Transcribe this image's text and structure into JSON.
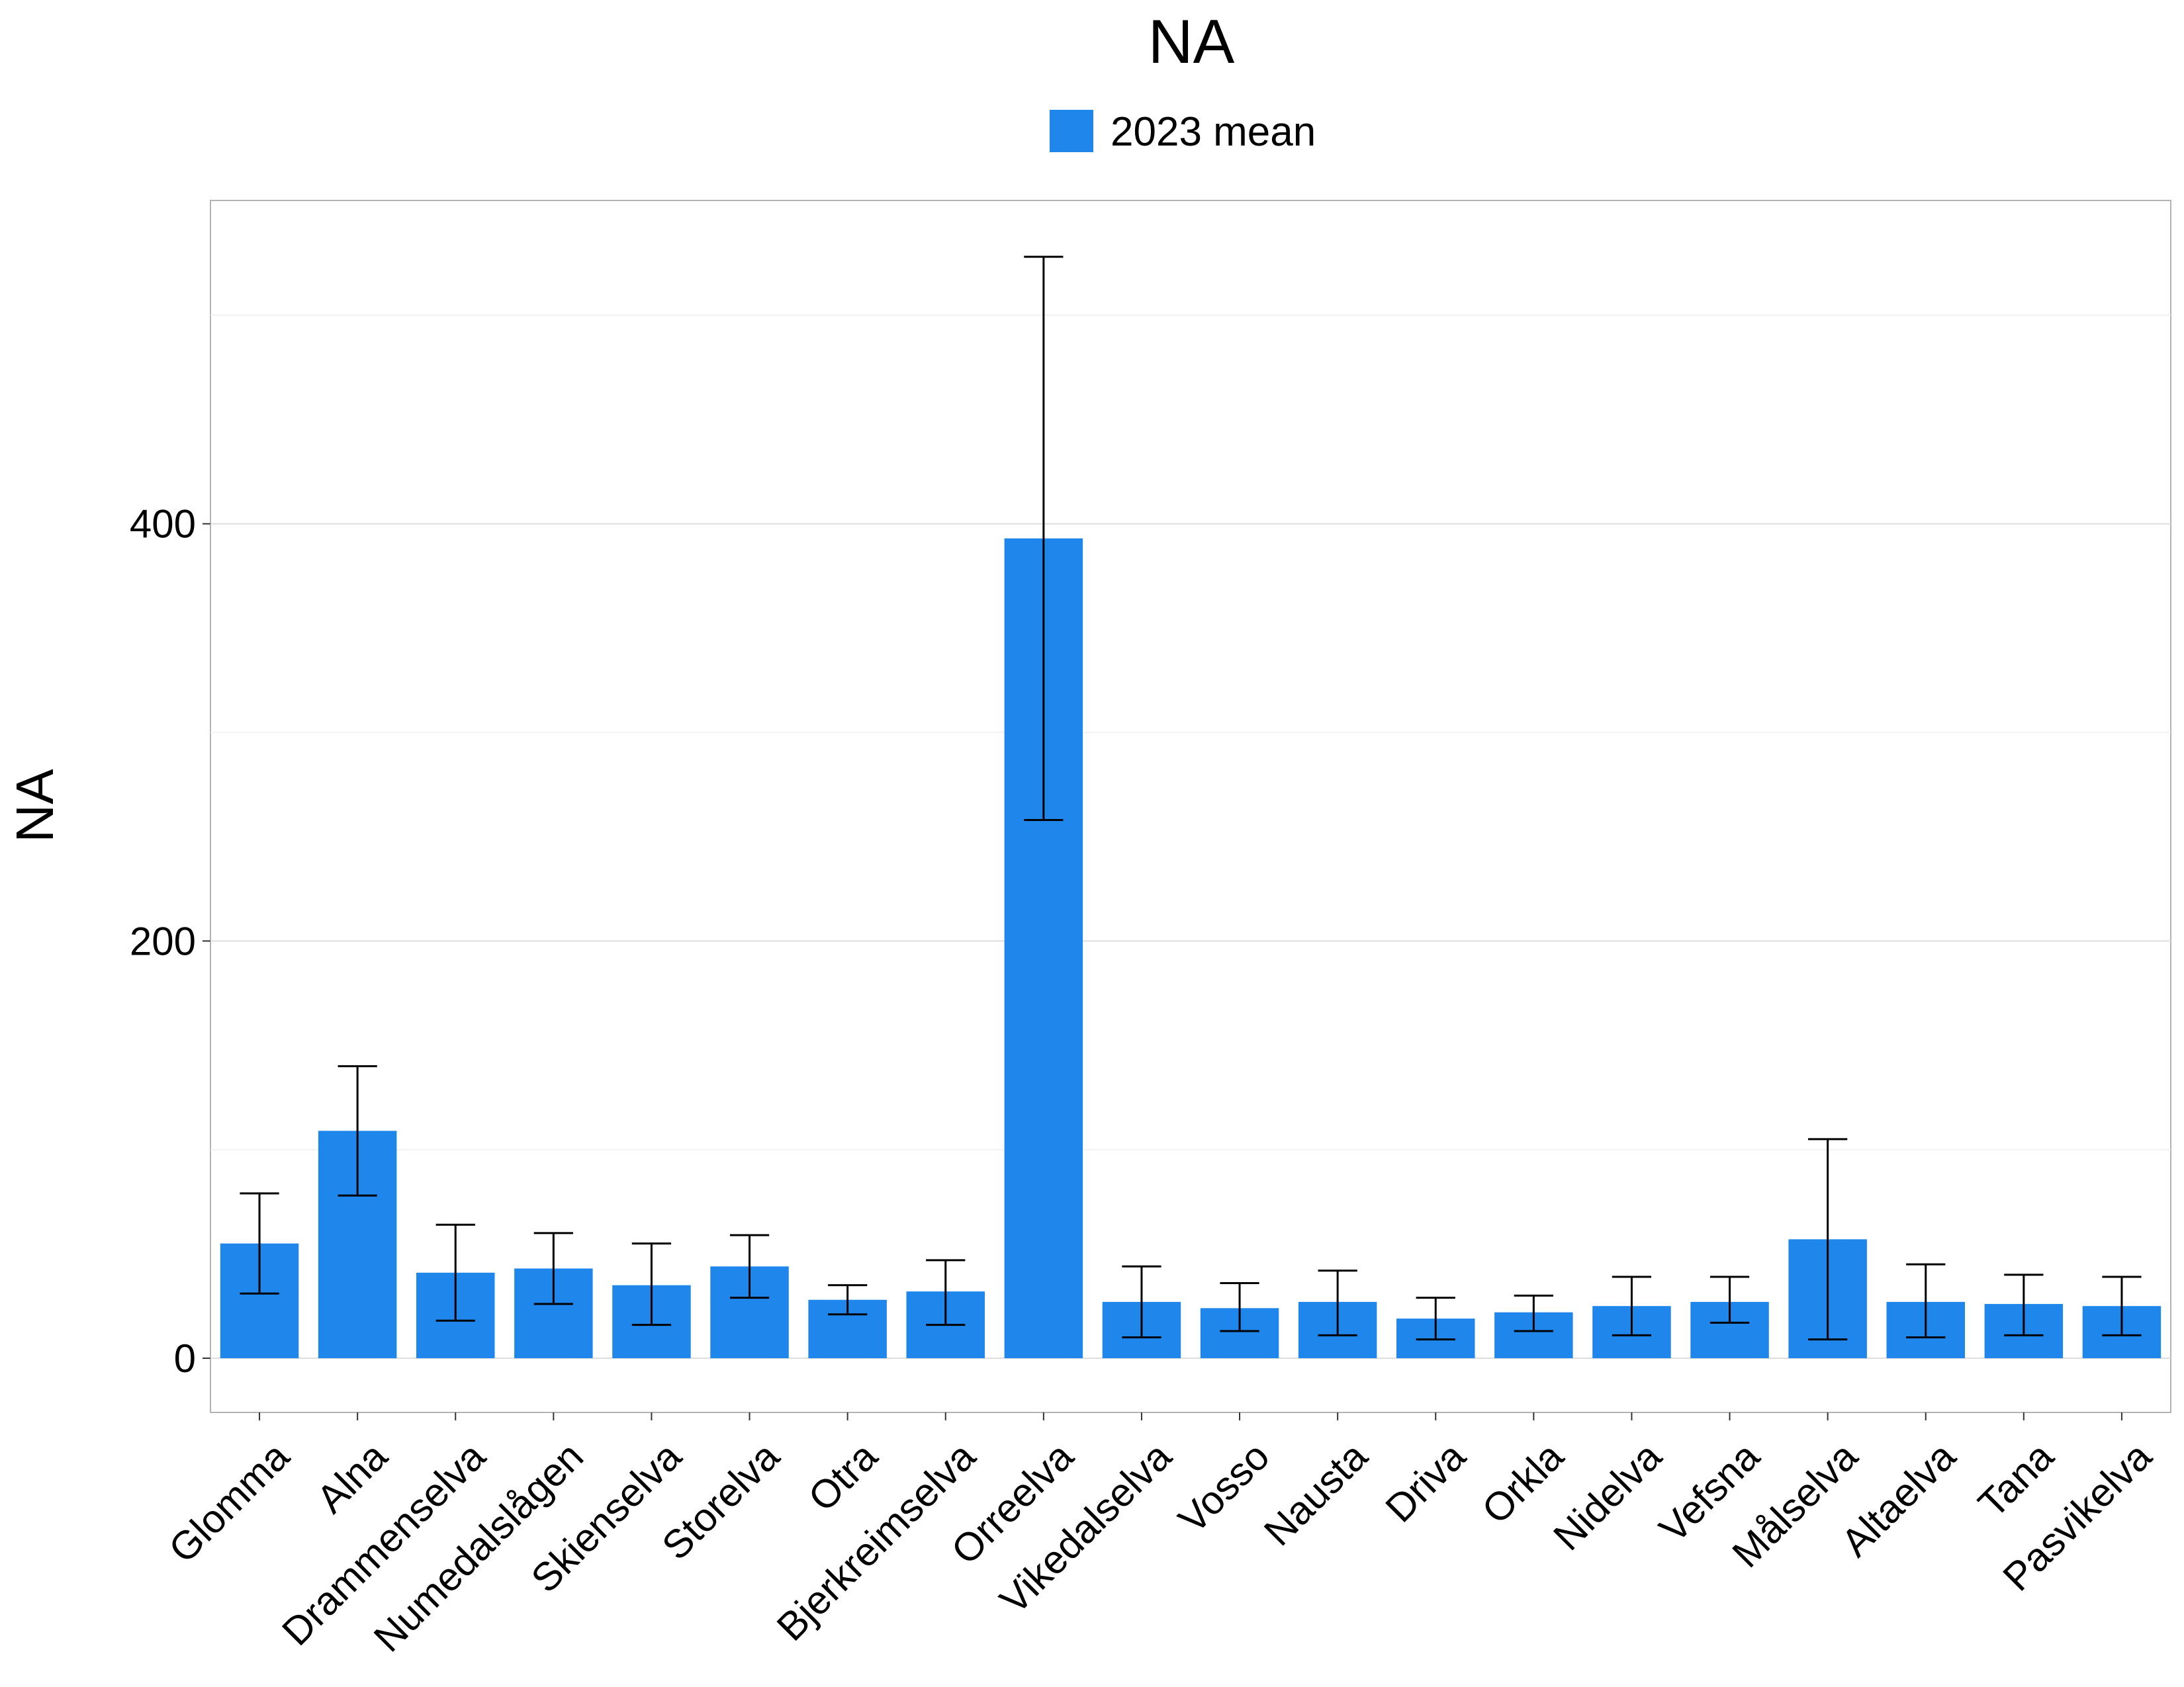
{
  "chart_data": {
    "type": "bar",
    "title": "NA",
    "ylabel": "NA",
    "xlabel": "",
    "legend": {
      "position": "top",
      "entries": [
        {
          "name": "2023 mean",
          "color": "#1f87ec"
        }
      ]
    },
    "grid": true,
    "ylim": [
      -26,
      555
    ],
    "yticks": [
      0,
      200,
      400
    ],
    "categories": [
      "Glomma",
      "Alna",
      "Drammenselva",
      "Numedalslågen",
      "Skienselva",
      "Storelva",
      "Otra",
      "Bjerkreimselva",
      "Orreelva",
      "Vikedalselva",
      "Vosso",
      "Nausta",
      "Driva",
      "Orkla",
      "Nidelva",
      "Vefsna",
      "Målselva",
      "Altaelva",
      "Tana",
      "Pasvikelva"
    ],
    "series": [
      {
        "name": "2023 mean",
        "color": "#1f87ec",
        "values": [
          55,
          109,
          41,
          43,
          35,
          44,
          28,
          32,
          393,
          27,
          24,
          27,
          19,
          22,
          25,
          27,
          57,
          27,
          26,
          25
        ],
        "error_low": [
          31,
          78,
          18,
          26,
          16,
          29,
          21,
          16,
          258,
          10,
          13,
          11,
          9,
          13,
          11,
          17,
          9,
          10,
          11,
          11
        ],
        "error_high": [
          79,
          140,
          64,
          60,
          55,
          59,
          35,
          47,
          528,
          44,
          36,
          42,
          29,
          30,
          39,
          39,
          105,
          45,
          40,
          39
        ]
      }
    ]
  }
}
